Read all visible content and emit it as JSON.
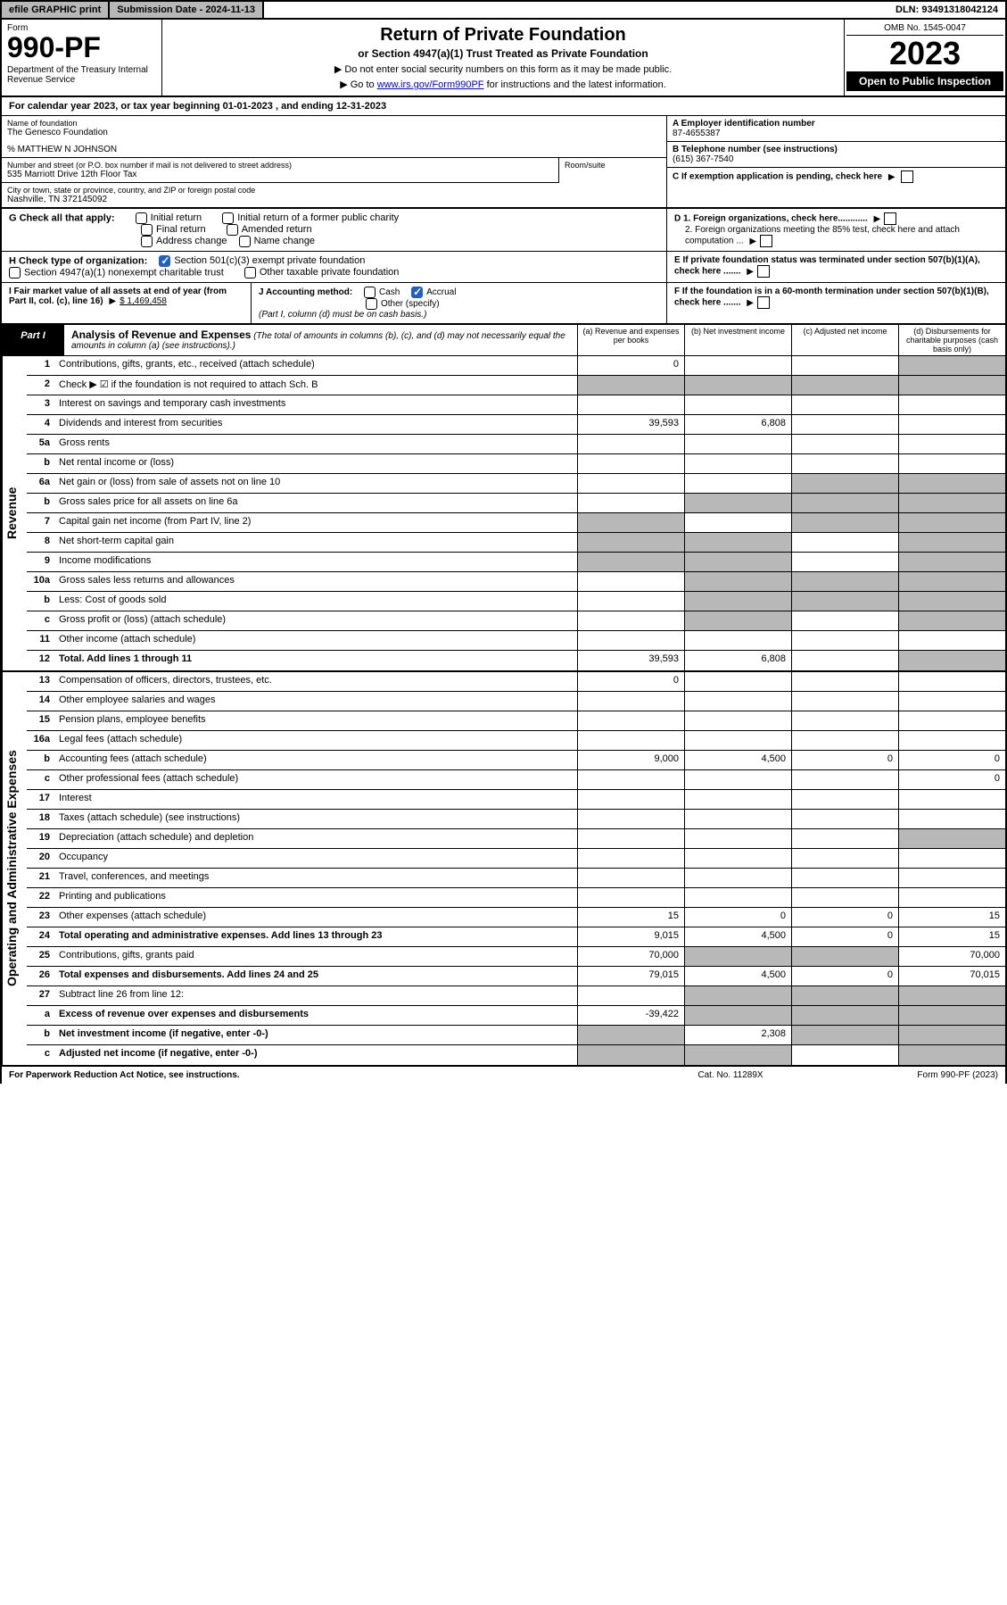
{
  "topbar": {
    "efile": "efile GRAPHIC print",
    "submission": "Submission Date - 2024-11-13",
    "dln": "DLN: 93491318042124"
  },
  "header": {
    "formword": "Form",
    "formnum": "990-PF",
    "dept": "Department of the Treasury\nInternal Revenue Service",
    "title": "Return of Private Foundation",
    "subtitle": "or Section 4947(a)(1) Trust Treated as Private Foundation",
    "instr1": "▶ Do not enter social security numbers on this form as it may be made public.",
    "instr2_pre": "▶ Go to ",
    "instr2_link": "www.irs.gov/Form990PF",
    "instr2_post": " for instructions and the latest information.",
    "omb": "OMB No. 1545-0047",
    "year": "2023",
    "open": "Open to Public Inspection"
  },
  "calyear": "For calendar year 2023, or tax year beginning 01-01-2023          , and ending 12-31-2023",
  "info": {
    "name_label": "Name of foundation",
    "name": "The Genesco Foundation",
    "careof": "% MATTHEW N JOHNSON",
    "addr_label": "Number and street (or P.O. box number if mail is not delivered to street address)",
    "addr": "535 Marriott Drive 12th Floor Tax",
    "room_label": "Room/suite",
    "city_label": "City or town, state or province, country, and ZIP or foreign postal code",
    "city": "Nashville, TN  372145092",
    "a_label": "A Employer identification number",
    "a_val": "87-4655387",
    "b_label": "B Telephone number (see instructions)",
    "b_val": "(615) 367-7540",
    "c_label": "C If exemption application is pending, check here",
    "d1": "D 1. Foreign organizations, check here............",
    "d2": "2. Foreign organizations meeting the 85% test, check here and attach computation ...",
    "e_label": "E  If private foundation status was terminated under section 507(b)(1)(A), check here .......",
    "f_label": "F  If the foundation is in a 60-month termination under section 507(b)(1)(B), check here ......."
  },
  "g": {
    "label": "G Check all that apply:",
    "opts": [
      "Initial return",
      "Initial return of a former public charity",
      "Final return",
      "Amended return",
      "Address change",
      "Name change"
    ]
  },
  "h": {
    "label": "H Check type of organization:",
    "opt1": "Section 501(c)(3) exempt private foundation",
    "opt2": "Section 4947(a)(1) nonexempt charitable trust",
    "opt3": "Other taxable private foundation"
  },
  "i": {
    "label": "I Fair market value of all assets at end of year (from Part II, col. (c), line 16)",
    "val": "$  1,469,458"
  },
  "j": {
    "label": "J Accounting method:",
    "cash": "Cash",
    "accrual": "Accrual",
    "other": "Other (specify)",
    "note": "(Part I, column (d) must be on cash basis.)"
  },
  "part1": {
    "badge": "Part I",
    "title": "Analysis of Revenue and Expenses",
    "note": "(The total of amounts in columns (b), (c), and (d) may not necessarily equal the amounts in column (a) (see instructions).)",
    "cols": {
      "a": "(a) Revenue and expenses per books",
      "b": "(b) Net investment income",
      "c": "(c) Adjusted net income",
      "d": "(d) Disbursements for charitable purposes (cash basis only)"
    }
  },
  "vlabels": {
    "revenue": "Revenue",
    "expenses": "Operating and Administrative Expenses"
  },
  "lines": [
    {
      "num": "1",
      "desc": "Contributions, gifts, grants, etc., received (attach schedule)",
      "a": "0",
      "d_grey": true
    },
    {
      "num": "2",
      "desc": "Check ▶ ☑ if the foundation is not required to attach Sch. B",
      "nocells": true
    },
    {
      "num": "3",
      "desc": "Interest on savings and temporary cash investments"
    },
    {
      "num": "4",
      "desc": "Dividends and interest from securities",
      "a": "39,593",
      "b": "6,808"
    },
    {
      "num": "5a",
      "desc": "Gross rents"
    },
    {
      "num": "b",
      "desc": "Net rental income or (loss)",
      "underline_after": true
    },
    {
      "num": "6a",
      "desc": "Net gain or (loss) from sale of assets not on line 10",
      "c_grey": true,
      "d_grey": true
    },
    {
      "num": "b",
      "desc": "Gross sales price for all assets on line 6a",
      "underline_after": true,
      "b_grey": true,
      "c_grey": true,
      "d_grey": true
    },
    {
      "num": "7",
      "desc": "Capital gain net income (from Part IV, line 2)",
      "a_grey": true,
      "c_grey": true,
      "d_grey": true
    },
    {
      "num": "8",
      "desc": "Net short-term capital gain",
      "a_grey": true,
      "b_grey": true,
      "d_grey": true
    },
    {
      "num": "9",
      "desc": "Income modifications",
      "a_grey": true,
      "b_grey": true,
      "d_grey": true
    },
    {
      "num": "10a",
      "desc": "Gross sales less returns and allowances",
      "b_grey": true,
      "c_grey": true,
      "d_grey": true
    },
    {
      "num": "b",
      "desc": "Less: Cost of goods sold",
      "b_grey": true,
      "c_grey": true,
      "d_grey": true
    },
    {
      "num": "c",
      "desc": "Gross profit or (loss) (attach schedule)",
      "b_grey": true,
      "d_grey": true
    },
    {
      "num": "11",
      "desc": "Other income (attach schedule)"
    },
    {
      "num": "12",
      "desc": "Total. Add lines 1 through 11",
      "bold": true,
      "a": "39,593",
      "b": "6,808",
      "d_grey": true
    }
  ],
  "exp_lines": [
    {
      "num": "13",
      "desc": "Compensation of officers, directors, trustees, etc.",
      "a": "0"
    },
    {
      "num": "14",
      "desc": "Other employee salaries and wages"
    },
    {
      "num": "15",
      "desc": "Pension plans, employee benefits"
    },
    {
      "num": "16a",
      "desc": "Legal fees (attach schedule)"
    },
    {
      "num": "b",
      "desc": "Accounting fees (attach schedule)",
      "a": "9,000",
      "b": "4,500",
      "c": "0",
      "d": "0"
    },
    {
      "num": "c",
      "desc": "Other professional fees (attach schedule)",
      "d": "0"
    },
    {
      "num": "17",
      "desc": "Interest"
    },
    {
      "num": "18",
      "desc": "Taxes (attach schedule) (see instructions)"
    },
    {
      "num": "19",
      "desc": "Depreciation (attach schedule) and depletion",
      "d_grey": true
    },
    {
      "num": "20",
      "desc": "Occupancy"
    },
    {
      "num": "21",
      "desc": "Travel, conferences, and meetings"
    },
    {
      "num": "22",
      "desc": "Printing and publications"
    },
    {
      "num": "23",
      "desc": "Other expenses (attach schedule)",
      "a": "15",
      "b": "0",
      "c": "0",
      "d": "15"
    },
    {
      "num": "24",
      "desc": "Total operating and administrative expenses. Add lines 13 through 23",
      "bold": true,
      "a": "9,015",
      "b": "4,500",
      "c": "0",
      "d": "15"
    },
    {
      "num": "25",
      "desc": "Contributions, gifts, grants paid",
      "a": "70,000",
      "b_grey": true,
      "c_grey": true,
      "d": "70,000"
    },
    {
      "num": "26",
      "desc": "Total expenses and disbursements. Add lines 24 and 25",
      "bold": true,
      "a": "79,015",
      "b": "4,500",
      "c": "0",
      "d": "70,015"
    },
    {
      "num": "27",
      "desc": "Subtract line 26 from line 12:",
      "b_grey": true,
      "c_grey": true,
      "d_grey": true
    },
    {
      "num": "a",
      "desc": "Excess of revenue over expenses and disbursements",
      "bold": true,
      "a": "-39,422",
      "b_grey": true,
      "c_grey": true,
      "d_grey": true
    },
    {
      "num": "b",
      "desc": "Net investment income (if negative, enter -0-)",
      "bold": true,
      "a_grey": true,
      "b": "2,308",
      "c_grey": true,
      "d_grey": true
    },
    {
      "num": "c",
      "desc": "Adjusted net income (if negative, enter -0-)",
      "bold": true,
      "a_grey": true,
      "b_grey": true,
      "d_grey": true
    }
  ],
  "footer": {
    "left": "For Paperwork Reduction Act Notice, see instructions.",
    "mid": "Cat. No. 11289X",
    "right": "Form 990-PF (2023)"
  }
}
